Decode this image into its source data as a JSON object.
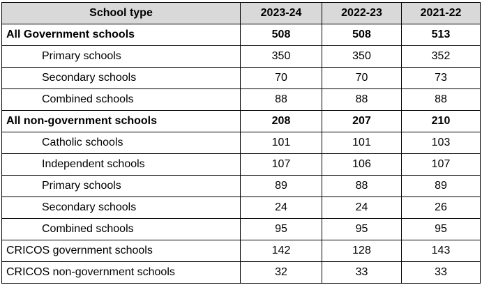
{
  "table": {
    "headers": [
      "School type",
      "2023-24",
      "2022-23",
      "2021-22"
    ],
    "rows": [
      {
        "label": "All Government schools",
        "values": [
          "508",
          "508",
          "513"
        ],
        "bold": true,
        "indent": false
      },
      {
        "label": "Primary schools",
        "values": [
          "350",
          "350",
          "352"
        ],
        "bold": false,
        "indent": true
      },
      {
        "label": "Secondary schools",
        "values": [
          "70",
          "70",
          "73"
        ],
        "bold": false,
        "indent": true
      },
      {
        "label": "Combined schools",
        "values": [
          "88",
          "88",
          "88"
        ],
        "bold": false,
        "indent": true
      },
      {
        "label": "All non-government schools",
        "values": [
          "208",
          "207",
          "210"
        ],
        "bold": true,
        "indent": false
      },
      {
        "label": "Catholic schools",
        "values": [
          "101",
          "101",
          "103"
        ],
        "bold": false,
        "indent": true
      },
      {
        "label": "Independent schools",
        "values": [
          "107",
          "106",
          "107"
        ],
        "bold": false,
        "indent": true
      },
      {
        "label": "Primary schools",
        "values": [
          "89",
          "88",
          "89"
        ],
        "bold": false,
        "indent": true
      },
      {
        "label": "Secondary schools",
        "values": [
          "24",
          "24",
          "26"
        ],
        "bold": false,
        "indent": true
      },
      {
        "label": "Combined schools",
        "values": [
          "95",
          "95",
          "95"
        ],
        "bold": false,
        "indent": true
      },
      {
        "label": "CRICOS government schools",
        "values": [
          "142",
          "128",
          "143"
        ],
        "bold": false,
        "indent": false
      },
      {
        "label": "CRICOS non-government schools",
        "values": [
          "32",
          "33",
          "33"
        ],
        "bold": false,
        "indent": false
      }
    ]
  }
}
